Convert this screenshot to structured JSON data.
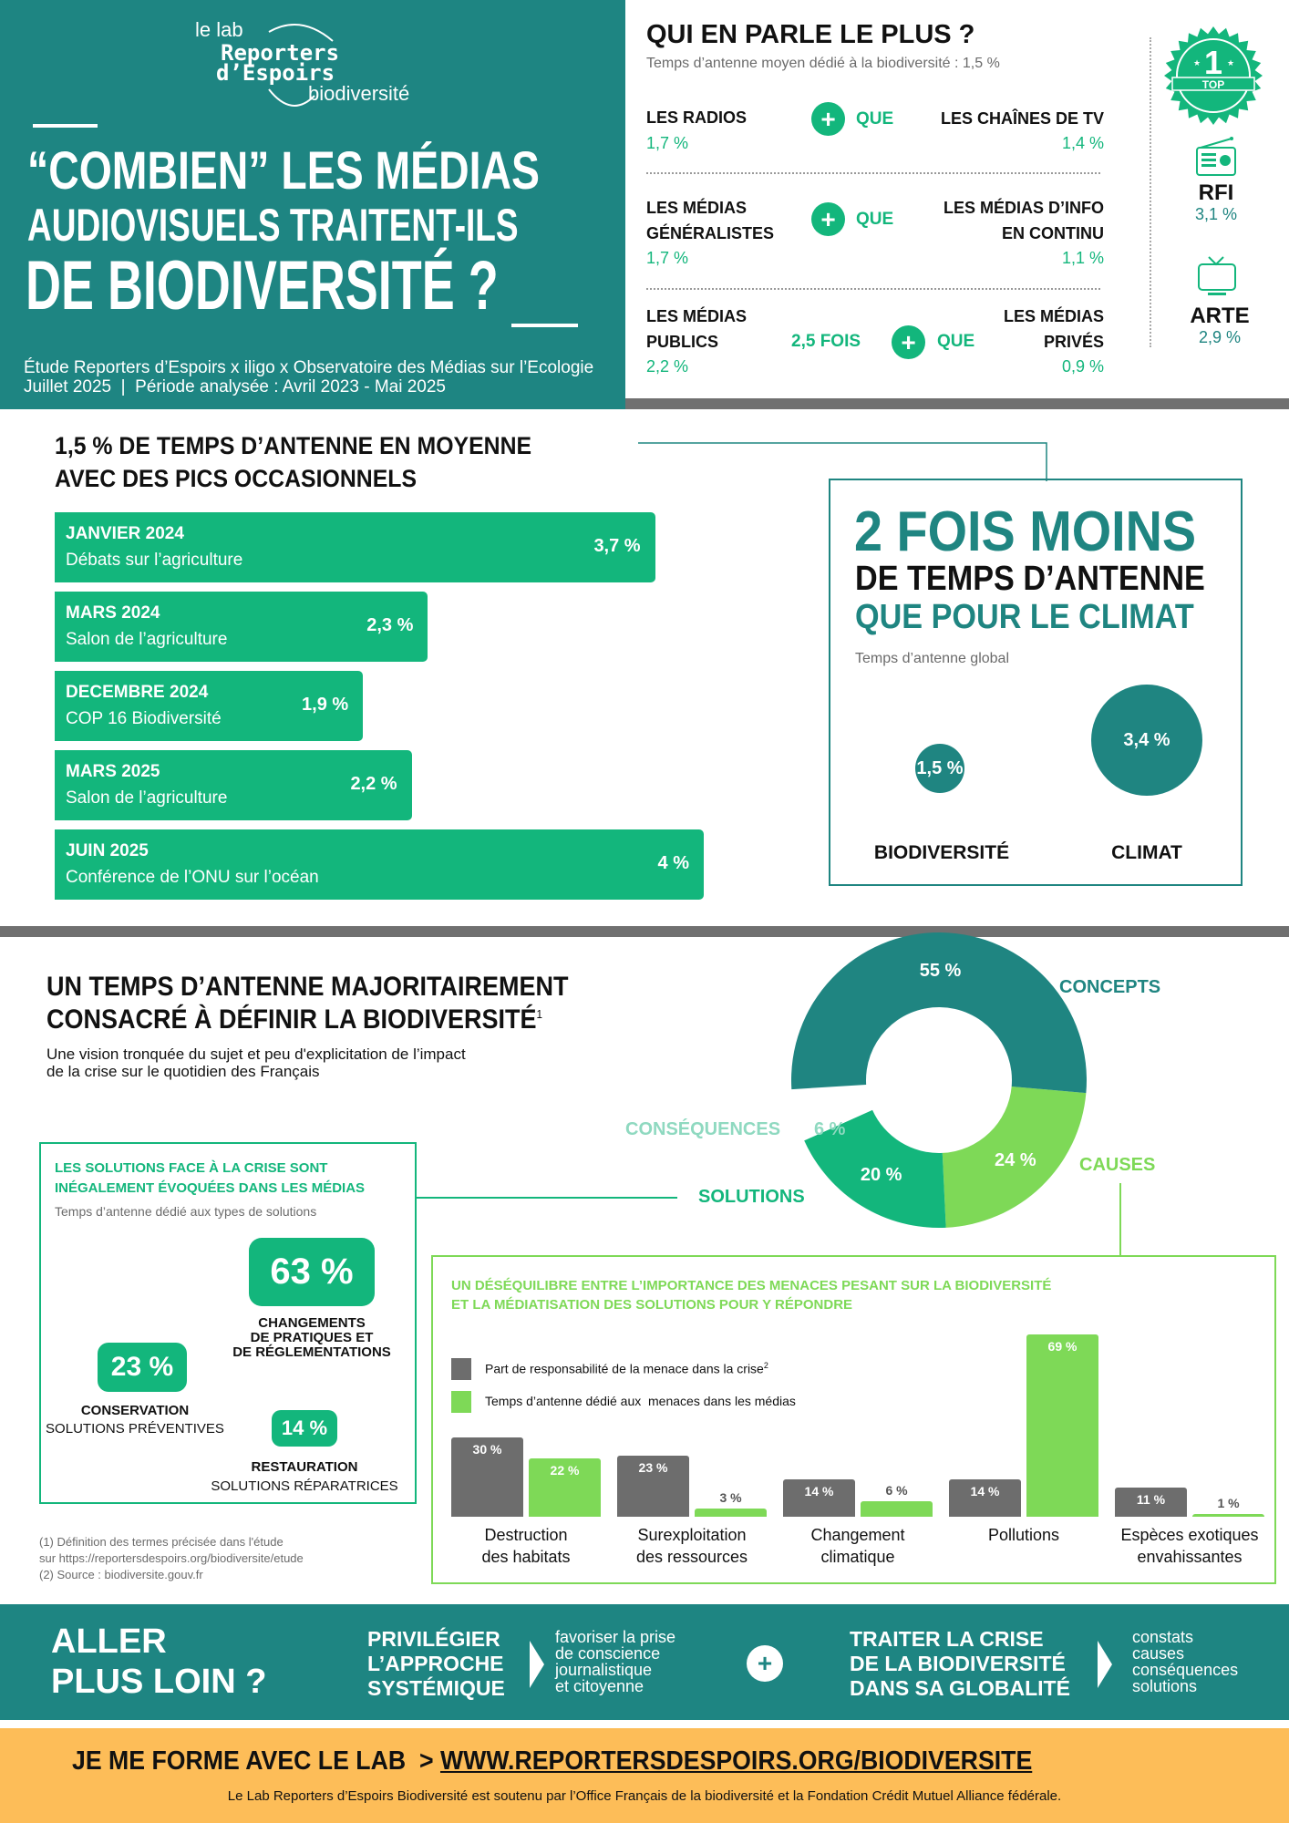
{
  "colors": {
    "teal": "#1f8581",
    "green": "#13b67c",
    "light_green": "#7ed957",
    "gray": "#6d6d6d",
    "divider": "#707070",
    "banner_yellow": "#fdbd58",
    "consequences_label": "#8fd9c0"
  },
  "header": {
    "logo": {
      "line1": "le lab",
      "line2": "Reporters",
      "line3": "d’Espoirs",
      "line4": "biodiversité"
    },
    "title_line1": "“COMBIEN” LES MÉDIAS",
    "title_line2": "AUDIOVISUELS TRAITENT-ILS",
    "title_line3": "DE BIODIVERSITÉ ?",
    "study": "Étude Reporters d’Espoirs x iligo x Observatoire des Médias sur l’Ecologie",
    "date_line": "Juillet 2025  |  Période analysée : Avril 2023 - Mai 2025"
  },
  "who": {
    "title": "QUI EN PARLE LE PLUS ?",
    "subtitle": "Temps d’antenne moyen dédié à la biodiversité : 1,5 %",
    "plus_symbol": "+",
    "rows": [
      {
        "left_1": "LES RADIOS",
        "left_2": "",
        "left_value": "1,7 %",
        "multiplier": "",
        "connector": "QUE",
        "right_1": "LES CHAÎNES DE TV",
        "right_2": "",
        "right_value": "1,4 %"
      },
      {
        "left_1": "LES MÉDIAS",
        "left_2": "GÉNÉRALISTES",
        "left_value": "1,7 %",
        "multiplier": "",
        "connector": "QUE",
        "right_1": "LES MÉDIAS D’INFO",
        "right_2": "EN CONTINU",
        "right_value": "1,1 %"
      },
      {
        "left_1": "LES MÉDIAS",
        "left_2": "PUBLICS",
        "left_value": "2,2 %",
        "multiplier": "2,5 FOIS",
        "connector": "QUE",
        "right_1": "LES MÉDIAS",
        "right_2": "PRIVÉS",
        "right_value": "0,9 %"
      }
    ],
    "top": {
      "badge_number": "1",
      "badge_text": "TOP",
      "badge_icon": "top-badge-icon",
      "items": [
        {
          "name": "RFI",
          "value": "3,1 %",
          "icon": "radio-icon"
        },
        {
          "name": "ARTE",
          "value": "2,9 %",
          "icon": "tv-icon"
        }
      ]
    }
  },
  "peaks": {
    "title_line1": "1,5 % DE TEMPS D’ANTENNE EN MOYENNE",
    "title_line2": "AVEC DES PICS OCCASIONNELS"
  },
  "climate": {
    "line1": "2 FOIS MOINS",
    "line2": "DE TEMPS D’ANTENNE",
    "line3": "QUE POUR LE CLIMAT",
    "caption": "Temps d’antenne global"
  },
  "definition": {
    "title_line1": "UN TEMPS D’ANTENNE MAJORITAIREMENT",
    "title_line2": "CONSACRÉ À DÉFINIR LA BIODIVERSITÉ",
    "title_sup": "1",
    "subtitle_line1": "Une vision tronquée du sujet et peu d'explicitation de l’impact",
    "subtitle_line2": "de la crise sur le quotidien des Français"
  },
  "solutions_box": {
    "title_line1": "LES SOLUTIONS FACE À LA CRISE SONT",
    "title_line2": "INÉGALEMENT ÉVOQUÉES DANS LES MÉDIAS",
    "subtitle": "Temps d’antenne dédié aux types de solutions",
    "items": [
      {
        "value": "63 %",
        "title_1": "CHANGEMENTS",
        "title_2": "DE PRATIQUES ET",
        "title_3": "DE RÉGLEMENTATIONS",
        "sub": ""
      },
      {
        "value": "23 %",
        "title_1": "CONSERVATION",
        "sub": "SOLUTIONS PRÉVENTIVES"
      },
      {
        "value": "14 %",
        "title_1": "RESTAURATION",
        "sub": "SOLUTIONS RÉPARATRICES"
      }
    ]
  },
  "footnotes": {
    "n1_line1": "(1) Définition des termes précisée dans l'étude",
    "n1_prefix": "sur ",
    "n1_link": "https://reportersdespoirs.org/biodiversite/etude",
    "n2_prefix": "(2) Source : ",
    "n2_link": "biodiversite.gouv.fr"
  },
  "threats": {
    "title_line1": "UN DÉSÉQUILIBRE ENTRE L’IMPORTANCE DES MENACES PESANT SUR LA BIODIVERSITÉ",
    "title_line2": "ET LA MÉDIATISATION DES SOLUTIONS POUR Y RÉPONDRE",
    "legend_1": "Part de responsabilité de la menace dans la crise",
    "legend_1_sup": "2",
    "legend_2": "Temps d’antenne dédié aux  menaces dans les médias"
  },
  "chart_data": [
    {
      "type": "bar",
      "orientation": "horizontal",
      "unit": "%",
      "categories": [
        "JANVIER 2024",
        "MARS 2024",
        "DECEMBRE 2024",
        "MARS 2025",
        "JUIN 2025"
      ],
      "subtitles": [
        "Débats sur l’agriculture",
        "Salon de  l’agriculture",
        "COP 16 Biodiversité",
        "Salon de  l’agriculture",
        "Conférence de l’ONU sur l’océan"
      ],
      "values": [
        3.7,
        2.3,
        1.9,
        2.2,
        4
      ],
      "labels": [
        "3,7 %",
        "2,3 %",
        "1,9 %",
        "2,2 %",
        "4 %"
      ],
      "grid": false
    },
    {
      "type": "scatter",
      "style": "bubble",
      "unit": "%",
      "categories": [
        "BIODIVERSITÉ",
        "CLIMAT"
      ],
      "values": [
        1.5,
        3.4
      ],
      "labels": [
        "1,5 %",
        "3,4 %"
      ]
    },
    {
      "type": "pie",
      "style": "donut",
      "unit": "%",
      "categories": [
        "CONCEPTS",
        "CAUSES",
        "SOLUTIONS",
        "CONSÉQUENCES"
      ],
      "values": [
        55,
        24,
        20,
        6
      ],
      "labels": [
        "55 %",
        "24 %",
        "20 %",
        "6 %"
      ],
      "colors": [
        "#1f8581",
        "#7ed957",
        "#13b67c",
        "#ffffff"
      ]
    },
    {
      "type": "bar",
      "orientation": "vertical",
      "unit": "%",
      "categories": [
        [
          "Destruction",
          "des habitats"
        ],
        [
          "Surexploitation",
          "des ressources"
        ],
        [
          "Changement",
          "climatique"
        ],
        [
          "Pollutions",
          ""
        ],
        [
          "Espèces exotiques",
          "envahissantes"
        ]
      ],
      "series": [
        {
          "name": "Part de responsabilité de la menace dans la crise",
          "color": "#6d6d6d",
          "values": [
            30,
            23,
            14,
            14,
            11
          ],
          "labels": [
            "30 %",
            "23 %",
            "14 %",
            "14 %",
            "11 %"
          ]
        },
        {
          "name": "Temps d’antenne dédié aux  menaces dans les médias",
          "color": "#7ed957",
          "values": [
            22,
            3,
            6,
            69,
            1
          ],
          "labels": [
            "22 %",
            "3 %",
            "6 %",
            "69 %",
            "1 %"
          ]
        }
      ],
      "legend": "top-left",
      "grid": false
    }
  ],
  "footer": {
    "cta_line1": "ALLER",
    "cta_line2": "PLUS LOIN ?",
    "a_line1": "PRIVILÉGIER",
    "a_line2": "L’APPROCHE",
    "a_line3": "SYSTÉMIQUE",
    "a_detail": [
      "favoriser la prise",
      "de conscience",
      "journalistique",
      "et citoyenne"
    ],
    "plus": "+",
    "b_line1": "TRAITER LA CRISE",
    "b_line2": "DE LA BIODIVERSITÉ",
    "b_line3": "DANS SA GLOBALITÉ",
    "b_detail": [
      "constats",
      "causes",
      "conséquences",
      "solutions"
    ]
  },
  "banner": {
    "lead": "JE ME FORME AVEC LE LAB",
    "arrow": ">",
    "url": "WWW.REPORTERSDESPOIRS.ORG/BIODIVERSITE",
    "support": "Le Lab Reporters d’Espoirs Biodiversité est soutenu par l’Office Français de la biodiversité et la Fondation Crédit Mutuel Alliance fédérale."
  }
}
